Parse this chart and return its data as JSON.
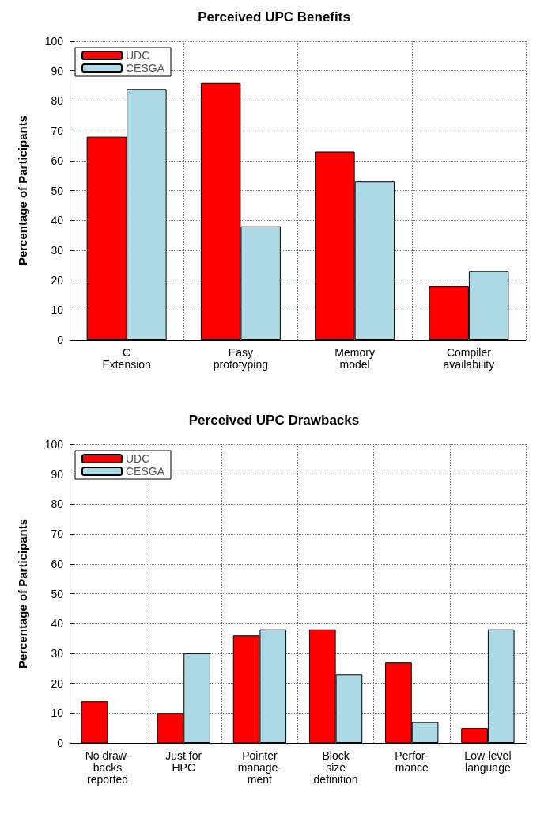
{
  "chart_data": [
    {
      "type": "bar",
      "title": "Perceived UPC Benefits",
      "ylabel": "Percentage of Participants",
      "categories": [
        "C\nExtension",
        "Easy\nprototyping",
        "Memory\nmodel",
        "Compiler\navailability"
      ],
      "series": [
        {
          "name": "UDC",
          "color": "#ff0000",
          "values": [
            68,
            86,
            63,
            18
          ]
        },
        {
          "name": "CESGA",
          "color": "#add8e6",
          "values": [
            84,
            38,
            53,
            23
          ]
        }
      ],
      "ylim": [
        0,
        100
      ],
      "yticks": [
        0,
        10,
        20,
        30,
        40,
        50,
        60,
        70,
        80,
        90,
        100
      ],
      "grid": true,
      "legend": "top left"
    },
    {
      "type": "bar",
      "title": "Perceived UPC Drawbacks",
      "ylabel": "Percentage of Participants",
      "categories": [
        "No draw-\nbacks\nreported",
        "Just for\nHPC",
        "Pointer\nmanage-\nment",
        "Block\nsize\ndefinition",
        "Perfor-\nmance",
        "Low-level\nlanguage"
      ],
      "series": [
        {
          "name": "UDC",
          "color": "#ff0000",
          "values": [
            14,
            10,
            36,
            38,
            27,
            5
          ]
        },
        {
          "name": "CESGA",
          "color": "#add8e6",
          "values": [
            null,
            30,
            38,
            23,
            7,
            38
          ]
        }
      ],
      "ylim": [
        0,
        100
      ],
      "yticks": [
        0,
        10,
        20,
        30,
        40,
        50,
        60,
        70,
        80,
        90,
        100
      ],
      "grid": true,
      "legend": "top left"
    }
  ]
}
